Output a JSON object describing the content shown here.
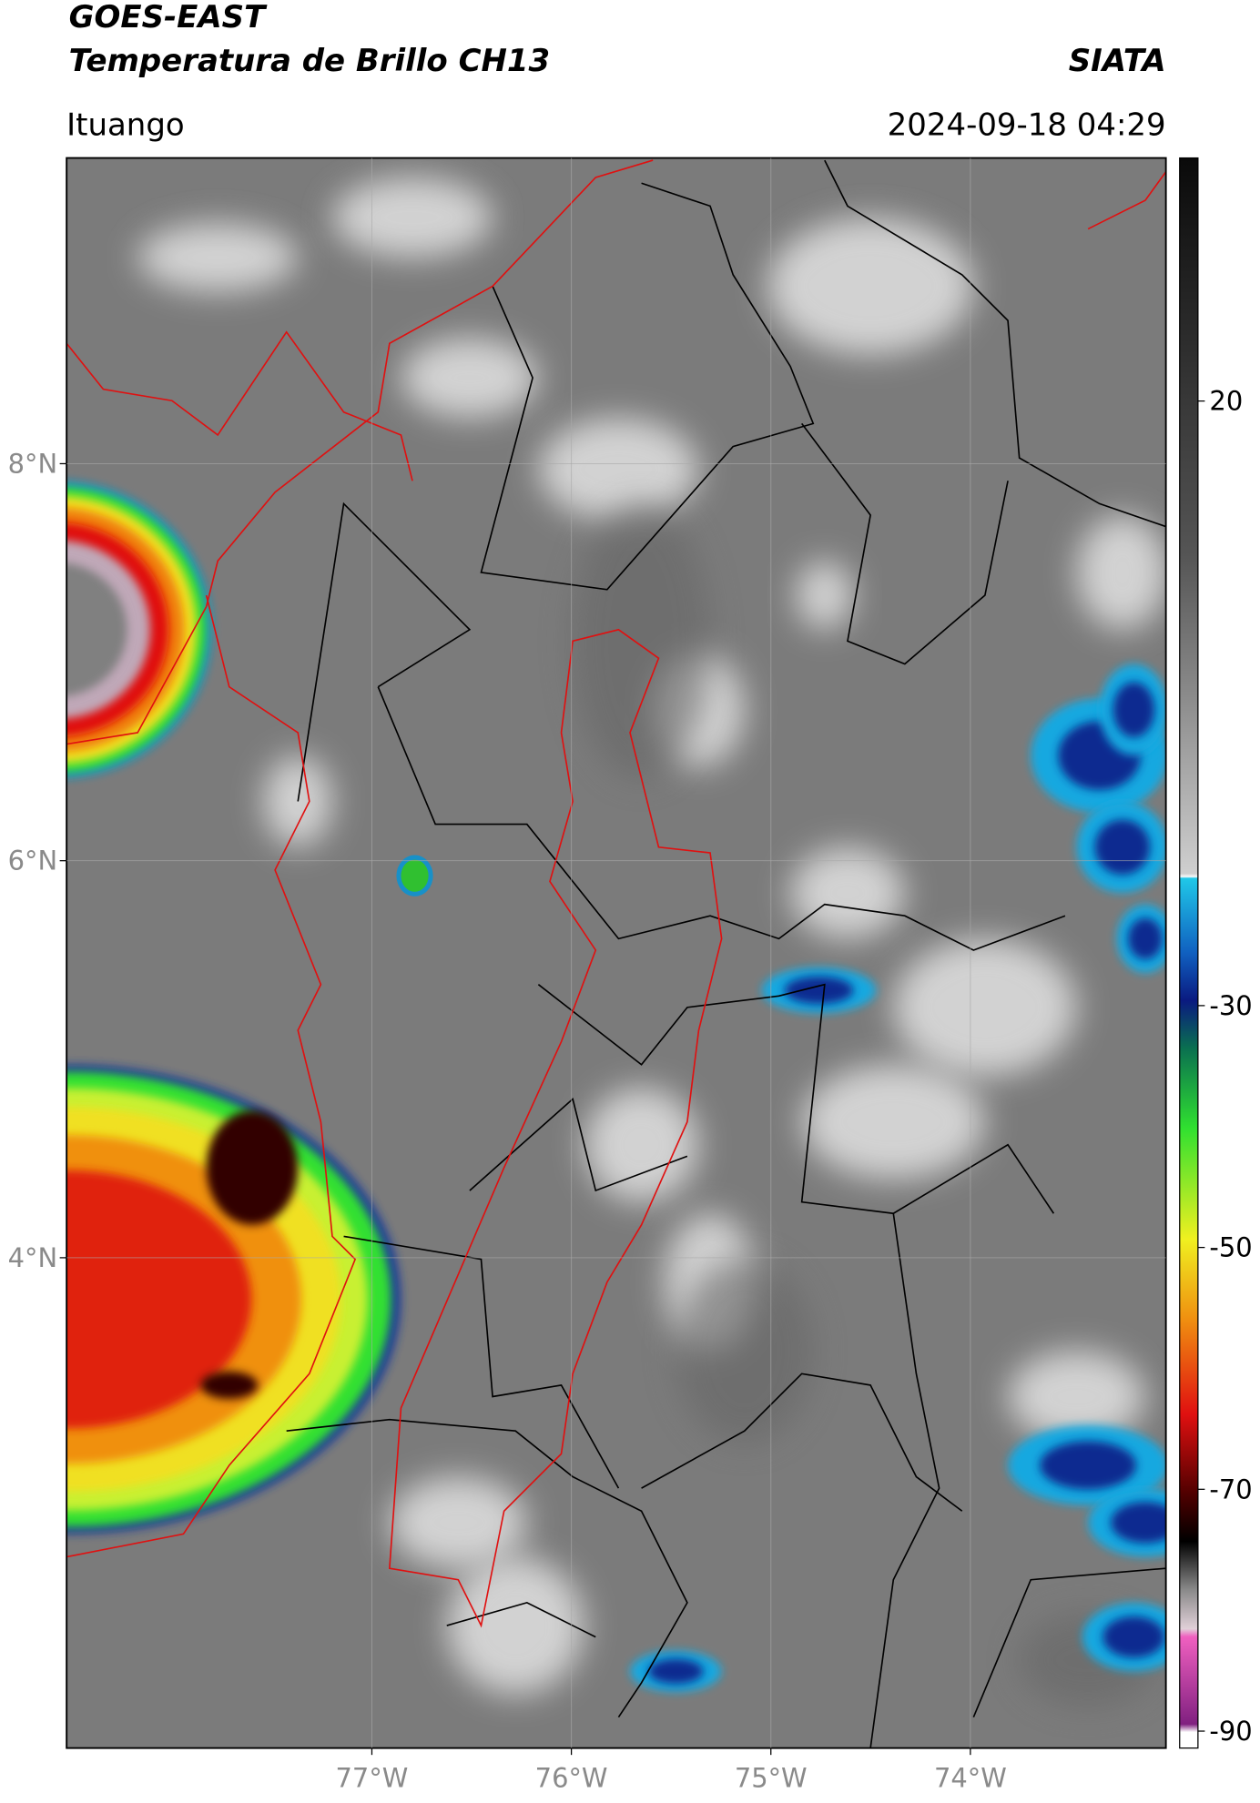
{
  "header": {
    "title": "GOES-EAST",
    "subtitle": "Temperatura de Brillo CH13",
    "brand": "SIATA",
    "location": "Ituango",
    "timestamp": "2024-09-18 04:29"
  },
  "map": {
    "xlim": [
      -78.53,
      -73.02
    ],
    "ylim": [
      1.53,
      9.54
    ],
    "xticks": [
      {
        "value": -77,
        "label": "77°W"
      },
      {
        "value": -76,
        "label": "76°W"
      },
      {
        "value": -75,
        "label": "75°W"
      },
      {
        "value": -74,
        "label": "74°W"
      }
    ],
    "yticks": [
      {
        "value": 8,
        "label": "8°N"
      },
      {
        "value": 6,
        "label": "6°N"
      },
      {
        "value": 4,
        "label": "4°N"
      }
    ]
  },
  "colorbar": {
    "lim": [
      -91.4,
      40.1
    ],
    "ticks": [
      20,
      -30,
      -50,
      -70,
      -90
    ]
  }
}
